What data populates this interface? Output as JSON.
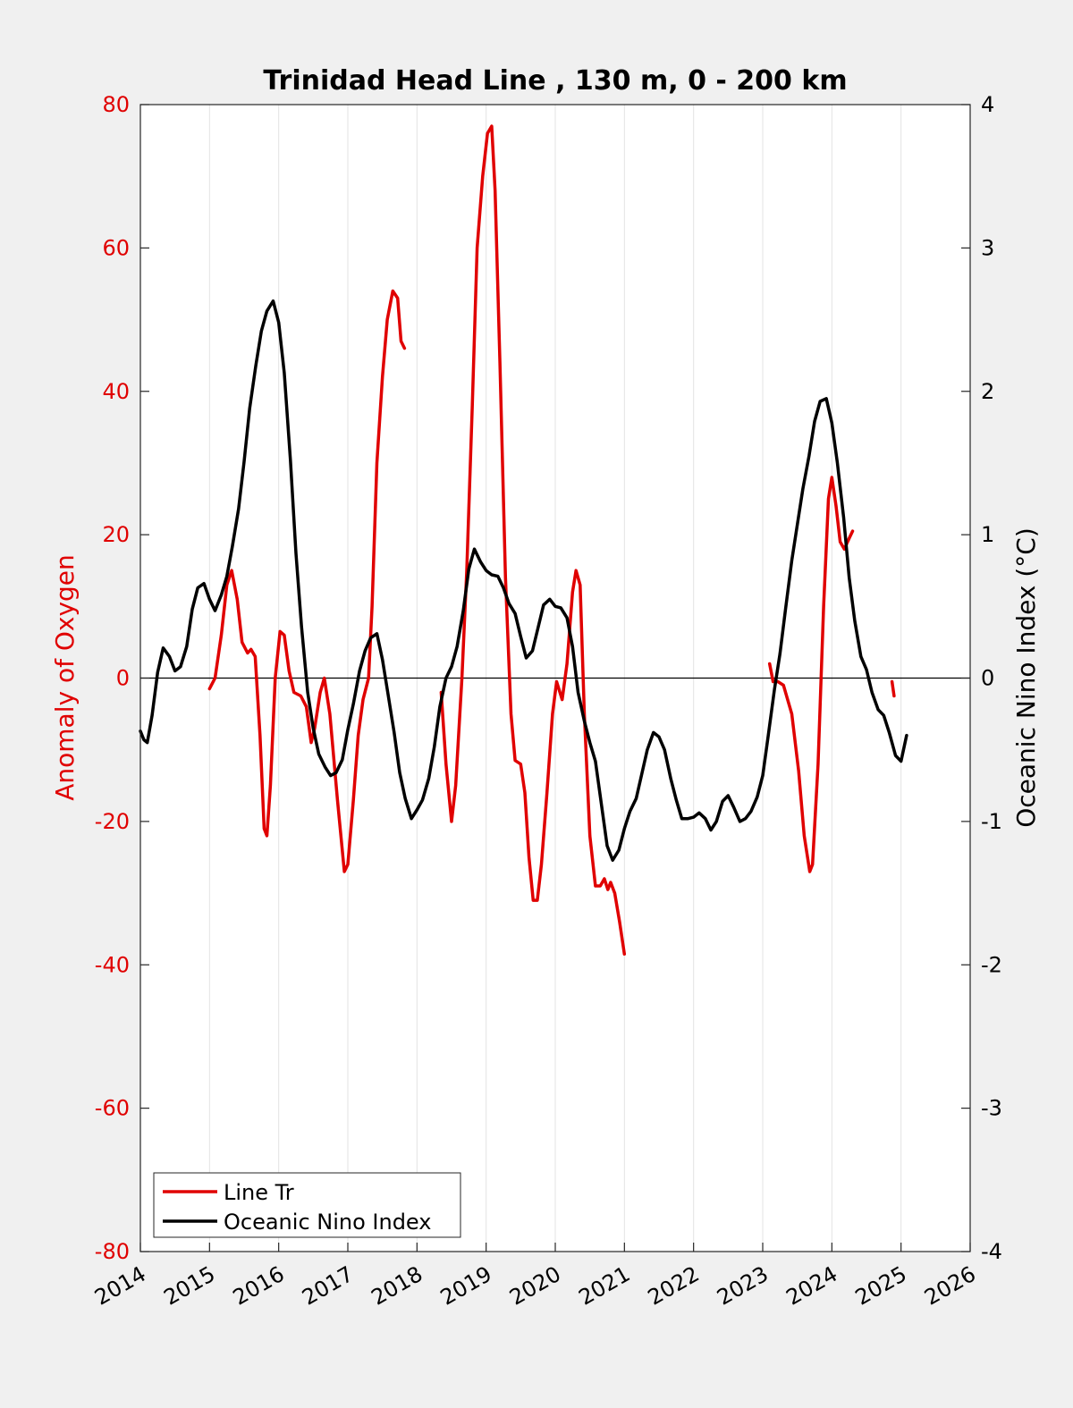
{
  "chart_data": {
    "type": "line",
    "title": "Trinidad Head Line , 130 m, 0 - 200 km",
    "xlabel": "",
    "ylabel": "Anomaly of Oxygen",
    "ylabel_right": "Oceanic Nino Index (°C)",
    "xlim": [
      2014,
      2026
    ],
    "ylim": [
      -80,
      80
    ],
    "ylim_right": [
      -4,
      4
    ],
    "x_ticks": [
      "2014",
      "2015",
      "2016",
      "2017",
      "2018",
      "2019",
      "2020",
      "2021",
      "2022",
      "2023",
      "2024",
      "2025",
      "2026"
    ],
    "y_ticks": [
      "-80",
      "-60",
      "-40",
      "-20",
      "0",
      "20",
      "40",
      "60",
      "80"
    ],
    "y_ticks_right": [
      "-4",
      "-3",
      "-2",
      "-1",
      "0",
      "1",
      "2",
      "3",
      "4"
    ],
    "grid": "vertical",
    "legend_placement": "bottom-left",
    "colors": {
      "oxygen": "#e00000",
      "oni": "#000000",
      "background": "#f0f0f0"
    },
    "series": [
      {
        "name": "Line Tr",
        "axis": "left",
        "segments": [
          [
            [
              2015.0,
              -1.5
            ],
            [
              2015.08,
              0
            ],
            [
              2015.17,
              6
            ],
            [
              2015.25,
              13
            ],
            [
              2015.32,
              15
            ],
            [
              2015.4,
              11
            ],
            [
              2015.47,
              5
            ],
            [
              2015.55,
              3.5
            ],
            [
              2015.6,
              4
            ],
            [
              2015.66,
              3
            ],
            [
              2015.73,
              -8
            ],
            [
              2015.79,
              -21
            ],
            [
              2015.83,
              -22
            ],
            [
              2015.88,
              -15
            ],
            [
              2015.95,
              0
            ],
            [
              2016.02,
              6.5
            ],
            [
              2016.08,
              6
            ],
            [
              2016.15,
              1
            ],
            [
              2016.22,
              -2
            ],
            [
              2016.32,
              -2.5
            ],
            [
              2016.4,
              -4
            ],
            [
              2016.47,
              -9
            ],
            [
              2016.52,
              -7
            ],
            [
              2016.6,
              -2
            ],
            [
              2016.66,
              0
            ],
            [
              2016.74,
              -5
            ],
            [
              2016.85,
              -17
            ],
            [
              2016.95,
              -27
            ],
            [
              2017.0,
              -26
            ],
            [
              2017.08,
              -17
            ],
            [
              2017.15,
              -8
            ],
            [
              2017.22,
              -3
            ],
            [
              2017.3,
              0
            ],
            [
              2017.35,
              10
            ],
            [
              2017.42,
              30
            ],
            [
              2017.5,
              42
            ],
            [
              2017.57,
              50
            ],
            [
              2017.65,
              54
            ],
            [
              2017.72,
              53
            ],
            [
              2017.77,
              47
            ],
            [
              2017.82,
              46
            ]
          ],
          [
            [
              2018.35,
              -2
            ],
            [
              2018.42,
              -12
            ],
            [
              2018.5,
              -20
            ],
            [
              2018.56,
              -15
            ],
            [
              2018.65,
              0
            ],
            [
              2018.72,
              15
            ],
            [
              2018.8,
              38
            ],
            [
              2018.87,
              60
            ],
            [
              2018.95,
              70
            ],
            [
              2019.02,
              76
            ],
            [
              2019.08,
              77
            ],
            [
              2019.13,
              68
            ],
            [
              2019.2,
              44
            ],
            [
              2019.28,
              14
            ],
            [
              2019.36,
              -5
            ],
            [
              2019.42,
              -11.5
            ],
            [
              2019.5,
              -12
            ],
            [
              2019.56,
              -16
            ],
            [
              2019.62,
              -25
            ],
            [
              2019.68,
              -31
            ],
            [
              2019.74,
              -31
            ],
            [
              2019.8,
              -26
            ],
            [
              2019.88,
              -16
            ],
            [
              2019.96,
              -5
            ],
            [
              2020.02,
              -0.5
            ],
            [
              2020.1,
              -3
            ],
            [
              2020.17,
              2
            ],
            [
              2020.25,
              12
            ],
            [
              2020.3,
              15
            ],
            [
              2020.36,
              13
            ],
            [
              2020.42,
              -5
            ],
            [
              2020.5,
              -22
            ],
            [
              2020.58,
              -29
            ],
            [
              2020.65,
              -29
            ],
            [
              2020.71,
              -28
            ],
            [
              2020.76,
              -29.5
            ],
            [
              2020.8,
              -28.5
            ],
            [
              2020.86,
              -30
            ],
            [
              2020.93,
              -34
            ],
            [
              2021.0,
              -38.5
            ]
          ],
          [
            [
              2023.1,
              2
            ],
            [
              2023.15,
              -0.5
            ],
            [
              2023.22,
              -0.5
            ],
            [
              2023.3,
              -1
            ],
            [
              2023.42,
              -5
            ],
            [
              2023.52,
              -13
            ],
            [
              2023.6,
              -22
            ],
            [
              2023.68,
              -27
            ],
            [
              2023.72,
              -26
            ],
            [
              2023.8,
              -12
            ],
            [
              2023.88,
              10
            ],
            [
              2023.95,
              25
            ],
            [
              2024.0,
              28
            ],
            [
              2024.06,
              24
            ],
            [
              2024.12,
              19
            ],
            [
              2024.18,
              18
            ],
            [
              2024.25,
              19.5
            ],
            [
              2024.3,
              20.5
            ]
          ],
          [
            [
              2024.87,
              -0.5
            ],
            [
              2024.9,
              -2.5
            ]
          ]
        ]
      },
      {
        "name": "Oceanic Nino Index",
        "axis": "right",
        "segments": [
          [
            [
              2014.0,
              -0.37
            ],
            [
              2014.05,
              -0.43
            ],
            [
              2014.1,
              -0.45
            ],
            [
              2014.17,
              -0.26
            ],
            [
              2014.25,
              0.04
            ],
            [
              2014.33,
              0.21
            ],
            [
              2014.42,
              0.15
            ],
            [
              2014.5,
              0.05
            ],
            [
              2014.58,
              0.08
            ],
            [
              2014.67,
              0.22
            ],
            [
              2014.75,
              0.48
            ],
            [
              2014.83,
              0.63
            ],
            [
              2014.92,
              0.66
            ],
            [
              2015.0,
              0.55
            ],
            [
              2015.08,
              0.47
            ],
            [
              2015.17,
              0.58
            ],
            [
              2015.25,
              0.71
            ],
            [
              2015.33,
              0.92
            ],
            [
              2015.42,
              1.18
            ],
            [
              2015.5,
              1.51
            ],
            [
              2015.58,
              1.88
            ],
            [
              2015.67,
              2.18
            ],
            [
              2015.75,
              2.42
            ],
            [
              2015.83,
              2.56
            ],
            [
              2015.92,
              2.63
            ],
            [
              2016.0,
              2.48
            ],
            [
              2016.08,
              2.13
            ],
            [
              2016.17,
              1.52
            ],
            [
              2016.25,
              0.87
            ],
            [
              2016.33,
              0.36
            ],
            [
              2016.42,
              -0.1
            ],
            [
              2016.5,
              -0.35
            ],
            [
              2016.58,
              -0.53
            ],
            [
              2016.67,
              -0.62
            ],
            [
              2016.75,
              -0.68
            ],
            [
              2016.83,
              -0.66
            ],
            [
              2016.92,
              -0.57
            ],
            [
              2017.0,
              -0.36
            ],
            [
              2017.08,
              -0.18
            ],
            [
              2017.17,
              0.05
            ],
            [
              2017.25,
              0.19
            ],
            [
              2017.33,
              0.28
            ],
            [
              2017.42,
              0.31
            ],
            [
              2017.5,
              0.13
            ],
            [
              2017.58,
              -0.11
            ],
            [
              2017.67,
              -0.38
            ],
            [
              2017.75,
              -0.66
            ],
            [
              2017.83,
              -0.84
            ],
            [
              2017.92,
              -0.98
            ],
            [
              2018.0,
              -0.92
            ],
            [
              2018.08,
              -0.85
            ],
            [
              2018.17,
              -0.7
            ],
            [
              2018.25,
              -0.48
            ],
            [
              2018.33,
              -0.2
            ],
            [
              2018.42,
              0.0
            ],
            [
              2018.5,
              0.08
            ],
            [
              2018.58,
              0.22
            ],
            [
              2018.67,
              0.47
            ],
            [
              2018.75,
              0.76
            ],
            [
              2018.83,
              0.9
            ],
            [
              2018.92,
              0.81
            ],
            [
              2019.0,
              0.75
            ],
            [
              2019.08,
              0.72
            ],
            [
              2019.17,
              0.71
            ],
            [
              2019.25,
              0.63
            ],
            [
              2019.33,
              0.52
            ],
            [
              2019.42,
              0.45
            ],
            [
              2019.5,
              0.29
            ],
            [
              2019.58,
              0.14
            ],
            [
              2019.67,
              0.19
            ],
            [
              2019.75,
              0.35
            ],
            [
              2019.83,
              0.51
            ],
            [
              2019.92,
              0.55
            ],
            [
              2020.0,
              0.5
            ],
            [
              2020.08,
              0.49
            ],
            [
              2020.17,
              0.42
            ],
            [
              2020.25,
              0.22
            ],
            [
              2020.33,
              -0.1
            ],
            [
              2020.42,
              -0.3
            ],
            [
              2020.5,
              -0.45
            ],
            [
              2020.58,
              -0.58
            ],
            [
              2020.67,
              -0.89
            ],
            [
              2020.75,
              -1.17
            ],
            [
              2020.83,
              -1.27
            ],
            [
              2020.92,
              -1.2
            ],
            [
              2021.0,
              -1.05
            ],
            [
              2021.08,
              -0.93
            ],
            [
              2021.17,
              -0.84
            ],
            [
              2021.25,
              -0.67
            ],
            [
              2021.33,
              -0.5
            ],
            [
              2021.42,
              -0.38
            ],
            [
              2021.5,
              -0.41
            ],
            [
              2021.58,
              -0.5
            ],
            [
              2021.67,
              -0.7
            ],
            [
              2021.75,
              -0.85
            ],
            [
              2021.83,
              -0.98
            ],
            [
              2021.92,
              -0.98
            ],
            [
              2022.0,
              -0.97
            ],
            [
              2022.08,
              -0.94
            ],
            [
              2022.17,
              -0.98
            ],
            [
              2022.25,
              -1.06
            ],
            [
              2022.33,
              -1.0
            ],
            [
              2022.42,
              -0.86
            ],
            [
              2022.5,
              -0.82
            ],
            [
              2022.58,
              -0.9
            ],
            [
              2022.67,
              -1.0
            ],
            [
              2022.75,
              -0.98
            ],
            [
              2022.83,
              -0.93
            ],
            [
              2022.92,
              -0.83
            ],
            [
              2023.0,
              -0.68
            ],
            [
              2023.08,
              -0.4
            ],
            [
              2023.17,
              -0.08
            ],
            [
              2023.25,
              0.17
            ],
            [
              2023.33,
              0.48
            ],
            [
              2023.42,
              0.82
            ],
            [
              2023.5,
              1.07
            ],
            [
              2023.58,
              1.32
            ],
            [
              2023.67,
              1.55
            ],
            [
              2023.75,
              1.79
            ],
            [
              2023.83,
              1.93
            ],
            [
              2023.92,
              1.95
            ],
            [
              2024.0,
              1.78
            ],
            [
              2024.08,
              1.5
            ],
            [
              2024.17,
              1.12
            ],
            [
              2024.25,
              0.7
            ],
            [
              2024.33,
              0.4
            ],
            [
              2024.42,
              0.15
            ],
            [
              2024.5,
              0.06
            ],
            [
              2024.58,
              -0.1
            ],
            [
              2024.67,
              -0.22
            ],
            [
              2024.75,
              -0.26
            ],
            [
              2024.83,
              -0.38
            ],
            [
              2024.92,
              -0.54
            ],
            [
              2025.0,
              -0.58
            ],
            [
              2025.08,
              -0.4
            ]
          ]
        ]
      }
    ]
  }
}
